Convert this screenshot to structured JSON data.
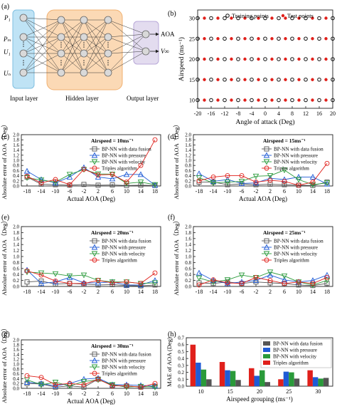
{
  "panels": {
    "a": "(a)",
    "b": "(b)",
    "c": "(c)",
    "d": "(d)",
    "e": "(e)",
    "f": "(f)",
    "g": "(g)",
    "h": "(h)"
  },
  "nn_diagram": {
    "inputs": [
      "P₁",
      "Pₘ",
      "U₁",
      "Uₙ"
    ],
    "outputs": [
      "AOA",
      "V∞"
    ],
    "layer_labels": [
      "Input layer",
      "Hidden layer",
      "Output layer"
    ],
    "colors": {
      "input": "#bfe3f5",
      "hidden": "#fbd9b5",
      "output": "#e3dcef",
      "node": "#d6d6d6"
    }
  },
  "series_colors": [
    "#555555",
    "#1f5bd6",
    "#2a9a3a",
    "#e0201b"
  ],
  "chart_data": [
    {
      "id": "b",
      "type": "scatter",
      "xlabel": "Angle of attack (Deg)",
      "ylabel": "Airspeed (ms⁻¹)",
      "xlim": [
        -20,
        20
      ],
      "ylim": [
        8,
        32
      ],
      "xticks": [
        -20,
        -16,
        -12,
        -8,
        -4,
        0,
        4,
        8,
        12,
        16,
        20
      ],
      "yticks": [
        10,
        15,
        20,
        25,
        30
      ],
      "speeds": [
        10,
        15,
        20,
        25,
        30
      ],
      "series": [
        {
          "name": "Training points",
          "x": [
            -20,
            -16,
            -12,
            -8,
            -4,
            0,
            4,
            8,
            12,
            16,
            20
          ]
        },
        {
          "name": "Test points",
          "x": [
            -18,
            -14,
            -10,
            -6,
            -2,
            2,
            6,
            10,
            14,
            18
          ]
        }
      ]
    },
    {
      "id": "c",
      "type": "line",
      "annotation": "Airspeed = 10ms⁻¹",
      "xlabel": "Actual AOA (Deg)",
      "ylabel": "Absolute error of AOA（Deg）",
      "x": [
        -18,
        -14,
        -10,
        -6,
        -2,
        2,
        6,
        10,
        14,
        18
      ],
      "xticks": [
        -18,
        -14,
        -10,
        -6,
        -2,
        2,
        6,
        10,
        14,
        18
      ],
      "ylim": [
        0,
        2.0
      ],
      "yticks": [
        "0.0",
        "0.2",
        "0.4",
        "0.6",
        "0.8",
        "1.0",
        "1.2",
        "1.4",
        "1.6",
        "1.8",
        "2.0"
      ],
      "series": [
        {
          "name": "BP-NN with data fusion",
          "marker": "square",
          "values": [
            0.35,
            0.07,
            0.05,
            0.03,
            0.06,
            0.03,
            0.04,
            0.02,
            0.03,
            0.02
          ]
        },
        {
          "name": "BP-NN with pressure",
          "marker": "triangle-up",
          "values": [
            0.58,
            0.25,
            0.12,
            0.35,
            0.72,
            0.35,
            0.28,
            0.45,
            0.45,
            0.03
          ]
        },
        {
          "name": "BP-NN with velocity",
          "marker": "triangle-down",
          "values": [
            0.32,
            0.23,
            0.15,
            0.45,
            0.64,
            0.47,
            0.46,
            0.1,
            0.15,
            0.05
          ]
        },
        {
          "name": "Triples algorithm",
          "marker": "circle",
          "values": [
            0.38,
            0.12,
            0.25,
            0.05,
            0.65,
            0.43,
            0.45,
            0.15,
            0.8,
            1.8
          ]
        }
      ]
    },
    {
      "id": "d",
      "type": "line",
      "annotation": "Airspeed = 15ms⁻¹",
      "xlabel": "Actual AOA (Deg)",
      "ylabel": "Absolute error of AOA（Deg）",
      "x": [
        -18,
        -14,
        -10,
        -6,
        -2,
        2,
        6,
        10,
        14,
        18
      ],
      "xticks": [
        -18,
        -14,
        -10,
        -6,
        -2,
        2,
        6,
        10,
        14,
        18
      ],
      "ylim": [
        0,
        2.0
      ],
      "yticks": [
        "0.0",
        "0.2",
        "0.4",
        "0.6",
        "0.8",
        "1.0",
        "1.2",
        "1.4",
        "1.6",
        "1.8",
        "2.0"
      ],
      "series": [
        {
          "name": "BP-NN with data fusion",
          "marker": "square",
          "values": [
            0.15,
            0.15,
            0.05,
            0.08,
            0.05,
            0.07,
            0.05,
            0.03,
            0.02,
            0.15
          ]
        },
        {
          "name": "BP-NN with pressure",
          "marker": "triangle-up",
          "values": [
            0.48,
            0.18,
            0.25,
            0.1,
            0.12,
            0.3,
            0.25,
            0.35,
            0.35,
            0.08
          ]
        },
        {
          "name": "BP-NN with velocity",
          "marker": "triangle-down",
          "values": [
            0.32,
            0.12,
            0.15,
            0.18,
            0.38,
            0.4,
            0.62,
            0.25,
            0.05,
            0.12
          ]
        },
        {
          "name": "Triples algorithm",
          "marker": "circle",
          "values": [
            0.2,
            0.35,
            0.4,
            0.4,
            0.15,
            0.22,
            0.18,
            0.03,
            0.15,
            0.88
          ]
        }
      ]
    },
    {
      "id": "e",
      "type": "line",
      "annotation": "Airspeed = 20ms⁻¹",
      "xlabel": "",
      "ylabel": "Absolute error of AOA（Deg）",
      "x": [
        -18,
        -14,
        -10,
        -6,
        -2,
        2,
        6,
        10,
        14,
        18
      ],
      "xticks": [
        -18,
        -14,
        -10,
        -6,
        -2,
        2,
        6,
        10,
        14,
        18
      ],
      "ylim": [
        0,
        2.0
      ],
      "yticks": [
        "0.0",
        "0.2",
        "0.4",
        "0.6",
        "0.8",
        "1.0",
        "1.2",
        "1.4",
        "1.6",
        "1.8",
        "2.0"
      ],
      "series": [
        {
          "name": "BP-NN with data fusion",
          "marker": "square",
          "values": [
            0.15,
            0.18,
            0.08,
            0.1,
            0.08,
            0.05,
            0.06,
            0.03,
            0.02,
            0.05
          ]
        },
        {
          "name": "BP-NN with pressure",
          "marker": "triangle-up",
          "values": [
            0.55,
            0.1,
            0.15,
            0.3,
            0.12,
            0.12,
            0.15,
            0.05,
            0.05,
            0.2
          ]
        },
        {
          "name": "BP-NN with velocity",
          "marker": "triangle-down",
          "values": [
            0.48,
            0.45,
            0.42,
            0.35,
            0.38,
            0.2,
            0.15,
            0.15,
            0.1,
            0.12
          ]
        },
        {
          "name": "Triples algorithm",
          "marker": "circle",
          "values": [
            0.52,
            0.38,
            0.18,
            0.1,
            0.1,
            0.2,
            0.12,
            0.15,
            0.1,
            0.45
          ]
        }
      ]
    },
    {
      "id": "f",
      "type": "line",
      "annotation": "Airspeed = 25ms⁻¹",
      "xlabel": "",
      "ylabel": "Absolute error of AOA（Deg）",
      "x": [
        -18,
        -14,
        -10,
        -6,
        -2,
        2,
        6,
        10,
        14,
        18
      ],
      "xticks": [
        -18,
        -14,
        -10,
        -6,
        -2,
        2,
        6,
        10,
        14,
        18
      ],
      "ylim": [
        0,
        2.0
      ],
      "yticks": [
        "0.0",
        "0.2",
        "0.4",
        "0.6",
        "0.8",
        "1.0",
        "1.2",
        "1.4",
        "1.6",
        "1.8",
        "2.0"
      ],
      "series": [
        {
          "name": "BP-NN with data fusion",
          "marker": "square",
          "values": [
            0.12,
            0.1,
            0.15,
            0.1,
            0.15,
            0.12,
            0.1,
            0.05,
            0.03,
            0.1
          ]
        },
        {
          "name": "BP-NN with pressure",
          "marker": "triangle-up",
          "values": [
            0.45,
            0.2,
            0.1,
            0.15,
            0.2,
            0.38,
            0.22,
            0.15,
            0.2,
            0.38
          ]
        },
        {
          "name": "BP-NN with velocity",
          "marker": "triangle-down",
          "values": [
            0.28,
            0.15,
            0.22,
            0.38,
            0.3,
            0.48,
            0.35,
            0.15,
            0.05,
            0.2
          ]
        },
        {
          "name": "Triples algorithm",
          "marker": "circle",
          "values": [
            0.05,
            0.22,
            0.12,
            0.1,
            0.3,
            0.2,
            0.1,
            0.15,
            0.1,
            0.3
          ]
        }
      ]
    },
    {
      "id": "g",
      "type": "line",
      "annotation": "Airspeed = 30ms⁻¹",
      "xlabel": "Actual AOA (Deg)",
      "ylabel": "Absolute error of AOA（Deg）",
      "x": [
        -18,
        -14,
        -10,
        -6,
        -2,
        2,
        6,
        10,
        14,
        18
      ],
      "xticks": [
        -18,
        -14,
        -10,
        -6,
        -2,
        2,
        6,
        10,
        14,
        18
      ],
      "ylim": [
        0,
        2.0
      ],
      "yticks": [
        "0.0",
        "0.2",
        "0.4",
        "0.6",
        "0.8",
        "1.0",
        "1.2",
        "1.4",
        "1.6",
        "1.8",
        "2.0"
      ],
      "series": [
        {
          "name": "BP-NN with data fusion",
          "marker": "square",
          "values": [
            0.2,
            0.18,
            0.05,
            0.1,
            0.05,
            0.38,
            0.12,
            0.1,
            0.05,
            0.08
          ]
        },
        {
          "name": "BP-NN with pressure",
          "marker": "triangle-up",
          "values": [
            0.25,
            0.2,
            0.1,
            0.2,
            0.38,
            0.42,
            0.15,
            0.15,
            0.12,
            0.1
          ]
        },
        {
          "name": "BP-NN with velocity",
          "marker": "triangle-down",
          "values": [
            0.35,
            0.15,
            0.25,
            0.1,
            0.28,
            0.35,
            0.15,
            0.05,
            0.08,
            0.05
          ]
        },
        {
          "name": "Triples algorithm",
          "marker": "circle",
          "values": [
            0.52,
            0.45,
            0.15,
            0.2,
            0.15,
            0.38,
            0.1,
            0.1,
            0.05,
            0.2
          ]
        }
      ]
    },
    {
      "id": "h",
      "type": "bar",
      "xlabel": "Airspeed grouping (ms⁻¹)",
      "ylabel": "MAE of AOA (Deg)",
      "categories": [
        "10",
        "15",
        "20",
        "25",
        "30"
      ],
      "ylim": [
        0,
        0.7
      ],
      "yticks": [
        "0.0",
        "0.1",
        "0.2",
        "0.3",
        "0.4",
        "0.5",
        "0.6",
        "0.7"
      ],
      "legend_order": [
        0,
        1,
        2,
        3
      ],
      "series": [
        {
          "name": "BP-NN with data fusion",
          "color": "#555555",
          "values": [
            0.1,
            0.09,
            0.06,
            0.11,
            0.12
          ]
        },
        {
          "name": "BP-NN with pressure",
          "color": "#1f5bd6",
          "values": [
            0.34,
            0.23,
            0.15,
            0.21,
            0.13
          ]
        },
        {
          "name": "BP-NN with velocity",
          "color": "#2a9a3a",
          "values": [
            0.24,
            0.22,
            0.23,
            0.2,
            0.11
          ]
        },
        {
          "name": "Triples algorithm",
          "color": "#e0201b",
          "values": [
            0.6,
            0.35,
            0.26,
            0.1,
            0.23
          ]
        }
      ],
      "draw_order": [
        3,
        1,
        2,
        0
      ]
    }
  ]
}
